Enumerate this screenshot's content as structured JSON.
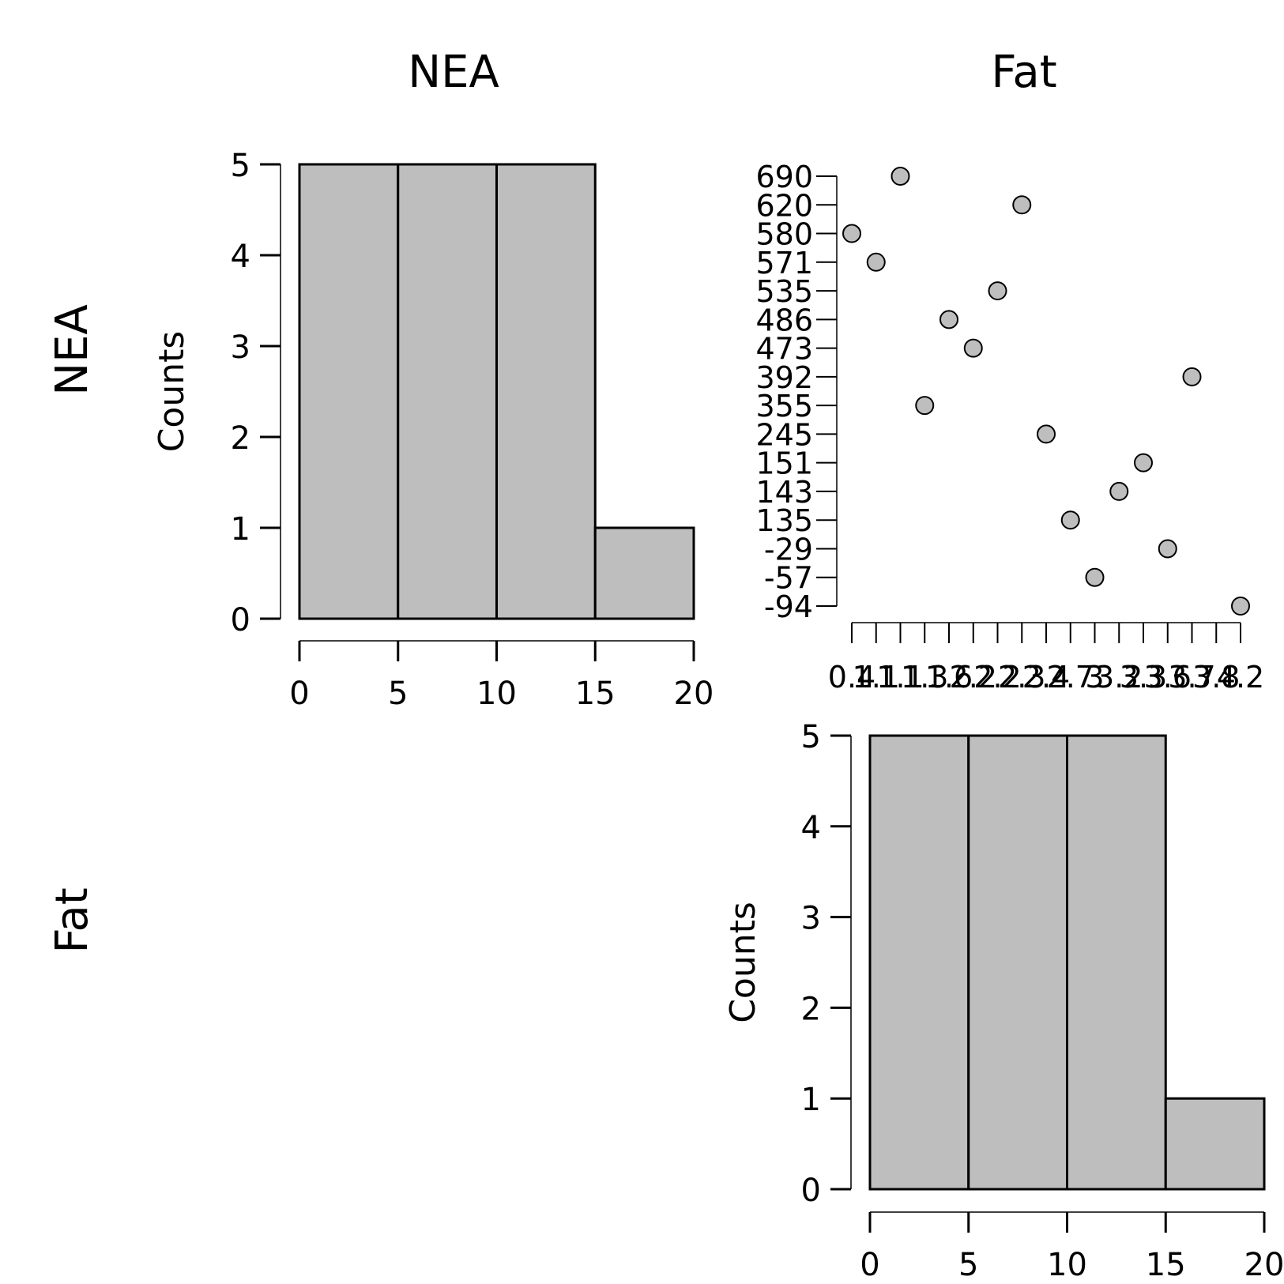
{
  "matrix": {
    "col_labels": [
      "NEA",
      "Fat"
    ],
    "row_labels": [
      "NEA",
      "Fat"
    ]
  },
  "chart_data": [
    {
      "type": "bar",
      "panel": "NEA-histogram",
      "ylabel": "Counts",
      "bins": [
        [
          0,
          5
        ],
        [
          5,
          10
        ],
        [
          10,
          15
        ],
        [
          15,
          20
        ]
      ],
      "values": [
        5,
        5,
        5,
        1
      ],
      "xlim": [
        0,
        20
      ],
      "ylim": [
        0,
        5
      ],
      "xticks": [
        "0",
        "5",
        "10",
        "15",
        "20"
      ],
      "yticks": [
        "0",
        "1",
        "2",
        "3",
        "4",
        "5"
      ]
    },
    {
      "type": "scatter",
      "panel": "Fat-vs-NEA-ranked",
      "x_tick_labels": [
        "0.4",
        "1.1",
        "1.1",
        "1.3",
        "1.6",
        "2.2",
        "2.2",
        "2.3",
        "2.4",
        "2.7",
        "3",
        "3.2",
        "3.3",
        "3.6",
        "3.7",
        "3.8",
        "4.2"
      ],
      "y_tick_labels": [
        "-94",
        "-57",
        "-29",
        "135",
        "143",
        "151",
        "245",
        "355",
        "392",
        "473",
        "486",
        "535",
        "571",
        "580",
        "620",
        "690"
      ],
      "points": [
        {
          "x": "0.4",
          "y": "580"
        },
        {
          "x": "1.1",
          "y": "571"
        },
        {
          "x": "1.1",
          "y": "690"
        },
        {
          "x": "1.3",
          "y": "355"
        },
        {
          "x": "1.6",
          "y": "486"
        },
        {
          "x": "2.2",
          "y": "473"
        },
        {
          "x": "2.2",
          "y": "535"
        },
        {
          "x": "2.3",
          "y": "620"
        },
        {
          "x": "2.4",
          "y": "245"
        },
        {
          "x": "2.7",
          "y": "135"
        },
        {
          "x": "3",
          "y": "-57"
        },
        {
          "x": "3.2",
          "y": "143"
        },
        {
          "x": "3.3",
          "y": "151"
        },
        {
          "x": "3.6",
          "y": "-29"
        },
        {
          "x": "3.7",
          "y": "392"
        },
        {
          "x": "4.2",
          "y": "-94"
        }
      ]
    },
    {
      "type": "bar",
      "panel": "Fat-histogram",
      "ylabel": "Counts",
      "bins": [
        [
          0,
          5
        ],
        [
          5,
          10
        ],
        [
          10,
          15
        ],
        [
          15,
          20
        ]
      ],
      "values": [
        5,
        5,
        5,
        1
      ],
      "xlim": [
        0,
        20
      ],
      "ylim": [
        0,
        5
      ],
      "xticks": [
        "0",
        "5",
        "10",
        "15",
        "20"
      ],
      "yticks": [
        "0",
        "1",
        "2",
        "3",
        "4",
        "5"
      ]
    }
  ]
}
